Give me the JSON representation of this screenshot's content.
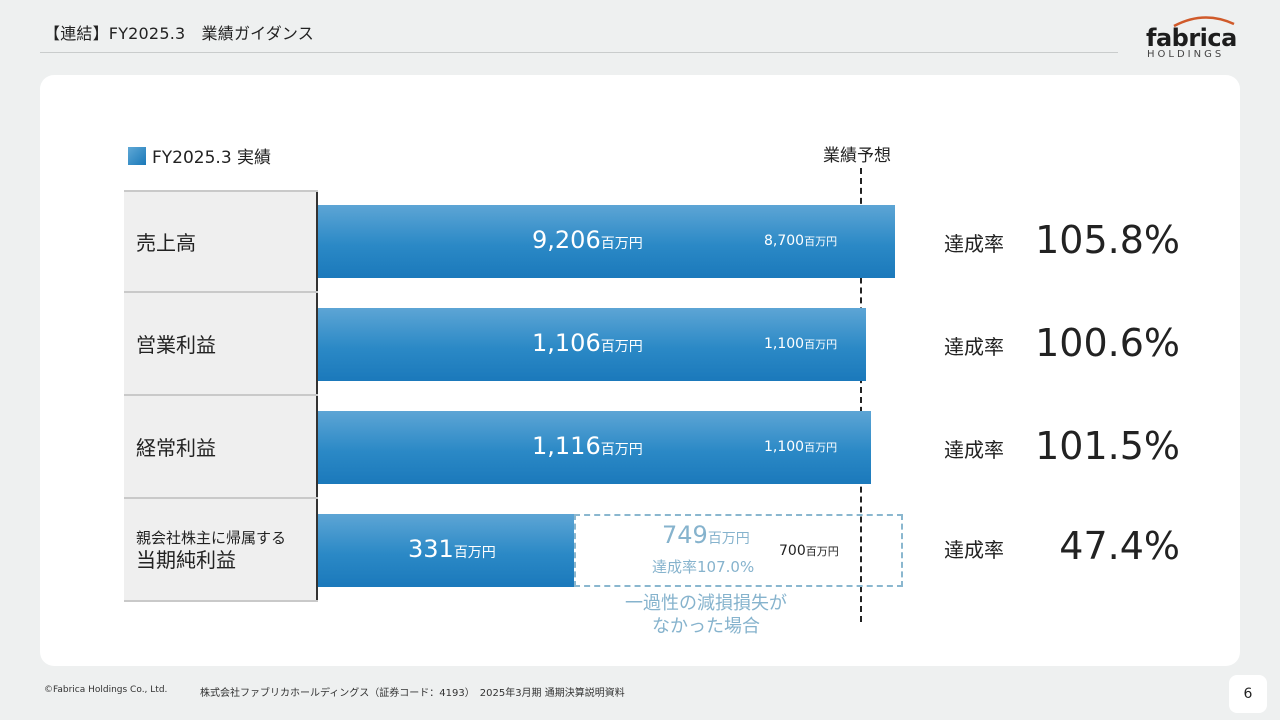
{
  "header": {
    "title": "【連結】FY2025.3　業績ガイダンス"
  },
  "logo": {
    "name": "fabrica",
    "sub": "HOLDINGS"
  },
  "legend": {
    "label": "FY2025.3 実績"
  },
  "forecast_label": "業績予想",
  "unit": "百万円",
  "achievement_label": "達成率",
  "colors": {
    "bar": "#2b89c6",
    "hypothetical": "#86b3cd",
    "background": "#eef0f0"
  },
  "rows": [
    {
      "category": "売上高",
      "actual": "9,206",
      "forecast": "8,700",
      "rate": "105.8%"
    },
    {
      "category": "営業利益",
      "actual": "1,106",
      "forecast": "1,100",
      "rate": "100.6%"
    },
    {
      "category": "経常利益",
      "actual": "1,116",
      "forecast": "1,100",
      "rate": "101.5%"
    },
    {
      "category_small": "親会社株主に帰属する",
      "category": "当期純利益",
      "actual": "331",
      "forecast": "700",
      "rate": "47.4%"
    }
  ],
  "hypothetical": {
    "value": "749",
    "rate": "達成率107.0%",
    "note_line1": "一過性の減損損失が",
    "note_line2": "なかった場合"
  },
  "chart_data": {
    "type": "bar",
    "orientation": "horizontal",
    "categories": [
      "売上高",
      "営業利益",
      "経常利益",
      "親会社株主に帰属する当期純利益"
    ],
    "series": [
      {
        "name": "FY2025.3 実績",
        "values": [
          9206,
          1106,
          1116,
          331
        ]
      },
      {
        "name": "業績予想",
        "values": [
          8700,
          1100,
          1100,
          700
        ]
      }
    ],
    "hypothetical_net_income": 749,
    "achievement_rates": [
      "105.8%",
      "100.6%",
      "101.5%",
      "47.4%"
    ],
    "unit": "百万円",
    "note": "bars normalized to forecast"
  },
  "footer": {
    "copyright": "©Fabrica Holdings Co., Ltd.",
    "company": "株式会社ファブリカホールディングス（証券コード：4193）　2025年3月期 通期決算説明資料"
  },
  "page_number": "6"
}
